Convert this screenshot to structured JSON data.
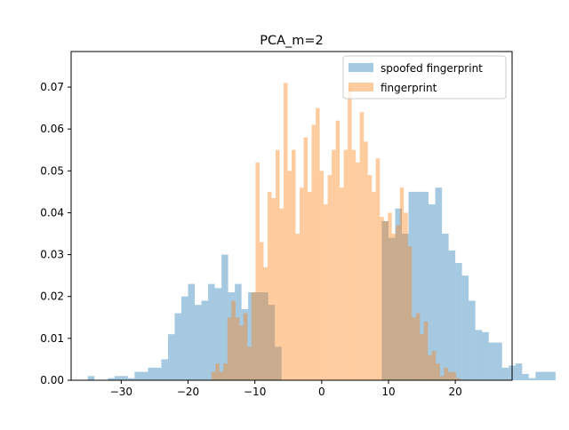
{
  "chart_data": {
    "type": "bar",
    "title": "PCA_m=2",
    "xlabel": "",
    "ylabel": "",
    "xlim": [
      -37.5,
      28.5
    ],
    "ylim": [
      0,
      0.0785
    ],
    "x_ticks": [
      -30,
      -20,
      -10,
      0,
      10,
      20
    ],
    "y_ticks": [
      0.0,
      0.01,
      0.02,
      0.03,
      0.04,
      0.05,
      0.06,
      0.07
    ],
    "y_tick_labels": [
      "0.00",
      "0.01",
      "0.02",
      "0.03",
      "0.04",
      "0.05",
      "0.06",
      "0.07"
    ],
    "x_tick_labels": [
      "−30",
      "−20",
      "−10",
      "0",
      "10",
      "20"
    ],
    "grid": false,
    "legend_position": "top-right",
    "series": [
      {
        "name": "spoofed fingerprint",
        "color": "#1f77b4",
        "alpha": 0.4,
        "bin_start": -35.0,
        "bin_width": 1.0,
        "values": [
          0.001,
          0.0,
          0.0,
          0.0005,
          0.001,
          0.001,
          0.0005,
          0.002,
          0.002,
          0.003,
          0.003,
          0.005,
          0.011,
          0.016,
          0.02,
          0.023,
          0.018,
          0.019,
          0.023,
          0.022,
          0.03,
          0.021,
          0.023,
          0.017,
          0.021,
          0.021,
          0.021,
          0.018,
          0.008,
          0.0,
          0.0,
          0.0,
          0.0,
          0.0,
          0.0,
          0.0,
          0.0,
          0.0,
          0.0,
          0.0,
          0.0,
          0.0,
          0.0,
          0.0,
          0.038,
          0.034,
          0.041,
          0.035,
          0.045,
          0.045,
          0.045,
          0.042,
          0.046,
          0.035,
          0.031,
          0.028,
          0.025,
          0.019,
          0.012,
          0.0115,
          0.009,
          0.009,
          0.003,
          0.0035,
          0.004,
          0.0015,
          0.0005,
          0.002,
          0.002,
          0.002
        ],
        "values_note_hidden": "",
        "bins_shown": 61
      },
      {
        "name": "fingerprint",
        "color": "#ff7f0e",
        "alpha": 0.4,
        "bin_start": -16.5,
        "bin_width": 0.6,
        "values": [
          0.002,
          0.004,
          0.002,
          0.004,
          0.015,
          0.019,
          0.015,
          0.013,
          0.016,
          0.008,
          0.021,
          0.052,
          0.033,
          0.027,
          0.045,
          0.0435,
          0.055,
          0.041,
          0.071,
          0.05,
          0.055,
          0.035,
          0.046,
          0.058,
          0.045,
          0.061,
          0.065,
          0.05,
          0.042,
          0.049,
          0.055,
          0.062,
          0.046,
          0.055,
          0.07,
          0.055,
          0.052,
          0.064,
          0.057,
          0.049,
          0.045,
          0.053,
          0.039,
          0.038,
          0.04,
          0.035,
          0.037,
          0.046,
          0.04,
          0.032,
          0.015,
          0.016,
          0.011,
          0.014,
          0.006,
          0.007,
          0.004,
          0.001,
          0.003,
          0.002,
          0.002,
          0.0005
        ]
      }
    ]
  }
}
